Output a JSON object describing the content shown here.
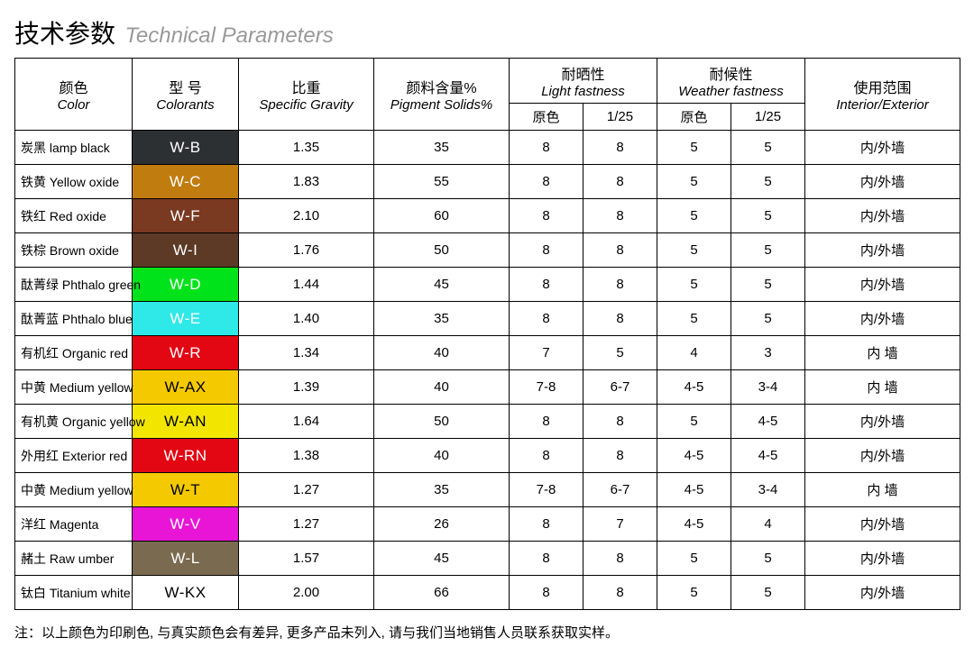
{
  "title": {
    "cn": "技术参数",
    "en": "Technical Parameters"
  },
  "headers": {
    "color": {
      "cn": "颜色",
      "en": "Color"
    },
    "model": {
      "cn": "型 号",
      "en": "Colorants"
    },
    "gravity": {
      "cn": "比重",
      "en": "Specific Gravity"
    },
    "pigment": {
      "cn": "颜料含量%",
      "en": "Pigment Solids%"
    },
    "light": {
      "cn": "耐晒性",
      "en": "Light fastness"
    },
    "weather": {
      "cn": "耐候性",
      "en": "Weather fastness"
    },
    "usage": {
      "cn": "使用范围",
      "en": "Interior/Exterior"
    },
    "orig": "原色",
    "ratio": "1/25"
  },
  "rows": [
    {
      "name": "炭黑 lamp black",
      "code": "W-B",
      "swatch": "#2c3033",
      "text": "light",
      "gravity": "1.35",
      "pigment": "35",
      "lf1": "8",
      "lf2": "8",
      "wf1": "5",
      "wf2": "5",
      "usage": "内/外墙"
    },
    {
      "name": "铁黄 Yellow oxide",
      "code": "W-C",
      "swatch": "#c17c0f",
      "text": "light",
      "gravity": "1.83",
      "pigment": "55",
      "lf1": "8",
      "lf2": "8",
      "wf1": "5",
      "wf2": "5",
      "usage": "内/外墙"
    },
    {
      "name": "铁红 Red oxide",
      "code": "W-F",
      "swatch": "#7a3921",
      "text": "light",
      "gravity": "2.10",
      "pigment": "60",
      "lf1": "8",
      "lf2": "8",
      "wf1": "5",
      "wf2": "5",
      "usage": "内/外墙"
    },
    {
      "name": "铁棕 Brown oxide",
      "code": "W-I",
      "swatch": "#5c3a26",
      "text": "light",
      "gravity": "1.76",
      "pigment": "50",
      "lf1": "8",
      "lf2": "8",
      "wf1": "5",
      "wf2": "5",
      "usage": "内/外墙"
    },
    {
      "name": "酞菁绿 Phthalo green",
      "code": "W-D",
      "swatch": "#00e31a",
      "text": "light",
      "gravity": "1.44",
      "pigment": "45",
      "lf1": "8",
      "lf2": "8",
      "wf1": "5",
      "wf2": "5",
      "usage": "内/外墙"
    },
    {
      "name": "酞菁蓝 Phthalo blue",
      "code": "W-E",
      "swatch": "#2fe8e8",
      "text": "light",
      "gravity": "1.40",
      "pigment": "35",
      "lf1": "8",
      "lf2": "8",
      "wf1": "5",
      "wf2": "5",
      "usage": "内/外墙"
    },
    {
      "name": "有机红 Organic red",
      "code": "W-R",
      "swatch": "#e30613",
      "text": "light",
      "gravity": "1.34",
      "pigment": "40",
      "lf1": "7",
      "lf2": "5",
      "wf1": "4",
      "wf2": "3",
      "usage": "内 墙"
    },
    {
      "name": "中黄 Medium yellow",
      "code": "W-AX",
      "swatch": "#f5c900",
      "text": "dark",
      "gravity": "1.39",
      "pigment": "40",
      "lf1": "7-8",
      "lf2": "6-7",
      "wf1": "4-5",
      "wf2": "3-4",
      "usage": "内 墙"
    },
    {
      "name": "有机黄 Organic yellow",
      "code": "W-AN",
      "swatch": "#f2e600",
      "text": "dark",
      "gravity": "1.64",
      "pigment": "50",
      "lf1": "8",
      "lf2": "8",
      "wf1": "5",
      "wf2": "4-5",
      "usage": "内/外墙"
    },
    {
      "name": "外用红 Exterior red",
      "code": "W-RN",
      "swatch": "#e30613",
      "text": "light",
      "gravity": "1.38",
      "pigment": "40",
      "lf1": "8",
      "lf2": "8",
      "wf1": "4-5",
      "wf2": "4-5",
      "usage": "内/外墙"
    },
    {
      "name": "中黄 Medium yellow",
      "code": "W-T",
      "swatch": "#f5c900",
      "text": "dark",
      "gravity": "1.27",
      "pigment": "35",
      "lf1": "7-8",
      "lf2": "6-7",
      "wf1": "4-5",
      "wf2": "3-4",
      "usage": "内 墙"
    },
    {
      "name": "洋红 Magenta",
      "code": "W-V",
      "swatch": "#e815d7",
      "text": "light",
      "gravity": "1.27",
      "pigment": "26",
      "lf1": "8",
      "lf2": "7",
      "wf1": "4-5",
      "wf2": "4",
      "usage": "内/外墙"
    },
    {
      "name": "赭土 Raw umber",
      "code": "W-L",
      "swatch": "#7a6a4f",
      "text": "light",
      "gravity": "1.57",
      "pigment": "45",
      "lf1": "8",
      "lf2": "8",
      "wf1": "5",
      "wf2": "5",
      "usage": "内/外墙"
    },
    {
      "name": "钛白 Titanium white",
      "code": "W-KX",
      "swatch": "#ffffff",
      "text": "dark",
      "gravity": "2.00",
      "pigment": "66",
      "lf1": "8",
      "lf2": "8",
      "wf1": "5",
      "wf2": "5",
      "usage": "内/外墙"
    }
  ],
  "footer": "注：以上颜色为印刷色, 与真实颜色会有差异, 更多产品未列入, 请与我们当地销售人员联系获取实样。",
  "col_widths": {
    "color": 130,
    "model": 118,
    "gravity": 150,
    "pigment": 150,
    "lf1": 82,
    "lf2": 82,
    "wf1": 82,
    "wf2": 82,
    "usage": 172
  }
}
